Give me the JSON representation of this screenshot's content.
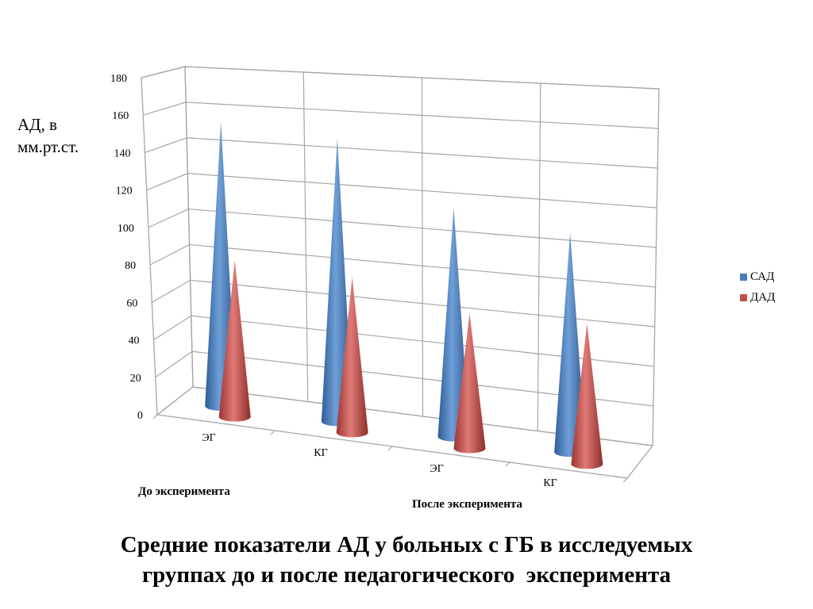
{
  "chart_data": {
    "type": "bar",
    "style": "3d-cone",
    "categories": [
      "ЭГ",
      "КГ",
      "ЭГ",
      "КГ"
    ],
    "groups": [
      {
        "label": "До эксперимента",
        "categories": [
          "ЭГ",
          "КГ"
        ]
      },
      {
        "label": "После эксперимента",
        "categories": [
          "ЭГ",
          "КГ"
        ]
      }
    ],
    "series": [
      {
        "name": "САД",
        "color": "#4a7ebb",
        "values": [
          160,
          155,
          122,
          114
        ]
      },
      {
        "name": "ДАД",
        "color": "#c0504d",
        "values": [
          88,
          85,
          72,
          73
        ]
      }
    ],
    "ylabel": "АД, в мм.рт.ст.",
    "ylim": [
      0,
      180
    ],
    "yticks": [
      0,
      20,
      40,
      60,
      80,
      100,
      120,
      140,
      160,
      180
    ],
    "grid": true,
    "legend": "right"
  },
  "caption": {
    "line1": "Средние показатели АД у больных с ГБ в исследуемых",
    "line2": "группах до и после педагогического  эксперимента"
  }
}
